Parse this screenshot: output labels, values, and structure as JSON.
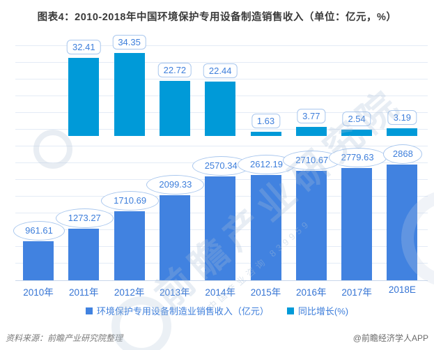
{
  "title": "图表4：2010-2018年中国环境保护专用设备制造销售收入（单位：亿元，%）",
  "chart_data": {
    "type": "bar",
    "categories": [
      "2010年",
      "2011年",
      "2012年",
      "2013年",
      "2014年",
      "2015年",
      "2016年",
      "2017年",
      "2018E"
    ],
    "series": [
      {
        "name": "环境保护专用设备制造业销售收入（亿元）",
        "color": "#4182E0",
        "values": [
          961.61,
          1273.27,
          1710.69,
          2099.33,
          2570.34,
          2612.19,
          2710.67,
          2779.63,
          2868
        ]
      },
      {
        "name": "同比增长(%)",
        "color": "#009AD8",
        "values": [
          null,
          32.41,
          34.35,
          22.72,
          22.44,
          1.63,
          3.77,
          2.54,
          3.19
        ]
      }
    ],
    "title": "图表4：2010-2018年中国环境保护专用设备制造销售收入（单位：亿元，%）",
    "xlabel": "",
    "ylabel": "",
    "grid": true,
    "legend_position": "bottom",
    "value_labels": "shown on every bar (revenue in ellipse bubbles, growth in rounded boxes)"
  },
  "colors": {
    "revenue_bar": "#4182E0",
    "growth_bar": "#009AD8",
    "value_text": "#3D7EDB",
    "axis_label_text": "#3574D4",
    "gridline": "#E3EBF6",
    "title_text": "#3A3A3A"
  },
  "watermark": {
    "text": "前瞻产业研究院",
    "subtext": "中国产业咨询 839959"
  },
  "footer": {
    "source": "资料来源：前瞻产业研究院整理",
    "brand": "@前瞻经济学人APP"
  }
}
